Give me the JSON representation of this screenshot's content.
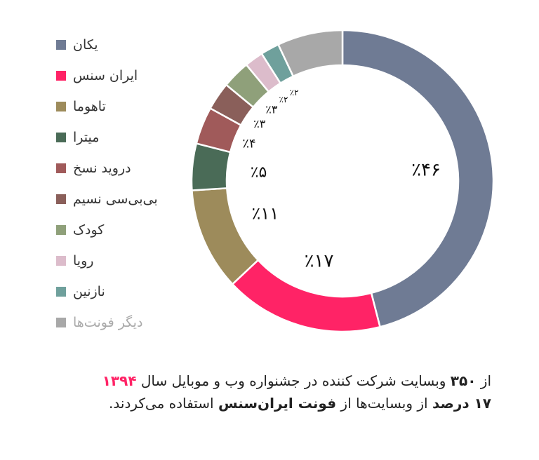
{
  "chart_data": {
    "type": "pie",
    "variant": "donut",
    "title": "",
    "categories": [
      "یکان",
      "ایران سنس",
      "تاهوما",
      "میترا",
      "درويد نسخ",
      "بی‌بی‌سی نسیم",
      "کودک",
      "رویا",
      "نازنین",
      "دیگر فونت‌ها"
    ],
    "values": [
      46,
      17,
      11,
      5,
      4,
      3,
      3,
      2,
      2,
      7
    ],
    "labels": [
      "٪۴۶",
      "٪۱۷",
      "٪۱۱",
      "٪۵",
      "٪۴",
      "٪۳",
      "٪۳",
      "٪۲",
      "٪۲",
      ""
    ],
    "colors": [
      "#6f7b94",
      "#ff2366",
      "#9d8b5b",
      "#4a6b57",
      "#a05a5a",
      "#8a5f5a",
      "#8fa07a",
      "#dcbccb",
      "#6fa09c",
      "#a8a8a8"
    ],
    "legend_position": "left"
  },
  "legend": {
    "items": [
      {
        "label": "یکان",
        "color": "#6f7b94"
      },
      {
        "label": "ایران سنس",
        "color": "#ff2366"
      },
      {
        "label": "تاهوما",
        "color": "#9d8b5b"
      },
      {
        "label": "میترا",
        "color": "#4a6b57"
      },
      {
        "label": "درويد نسخ",
        "color": "#a05a5a"
      },
      {
        "label": "بی‌بی‌سی نسیم",
        "color": "#8a5f5a"
      },
      {
        "label": "کودک",
        "color": "#8fa07a"
      },
      {
        "label": "رویا",
        "color": "#dcbccb"
      },
      {
        "label": "نازنین",
        "color": "#6fa09c"
      },
      {
        "label": "دیگر فونت‌ها",
        "color": "#a8a8a8"
      }
    ]
  },
  "caption": {
    "l1_a": "از ",
    "l1_b": "۳۵۰",
    "l1_c": " وبسایت شرکت کننده در جشنواره وب و موبایل سال ",
    "l1_d": "۱۳۹۴",
    "l2_a": "۱۷ درصد",
    "l2_b": " از وبسایت‌ها از ",
    "l2_c": "فونت ایران‌سنس",
    "l2_d": " استفاده می‌کردند."
  }
}
